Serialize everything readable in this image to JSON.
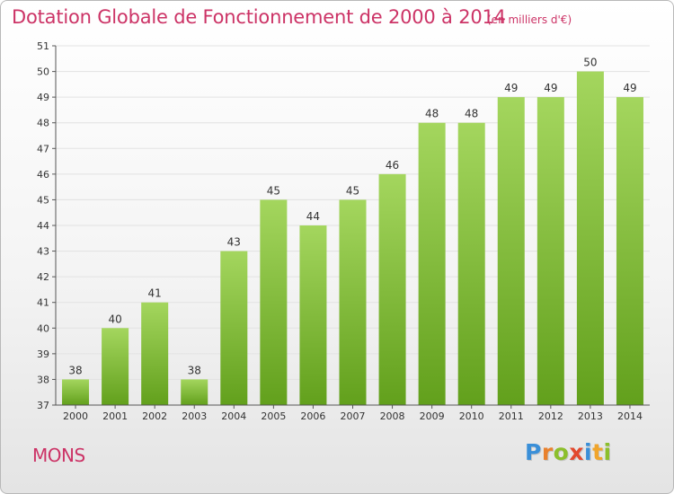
{
  "header": {
    "title": "Dotation Globale de Fonctionnement de 2000 à 2014",
    "subtitle": "(en milliers d'€)"
  },
  "footer": {
    "commune": "MONS",
    "logo_text": "Proxiti",
    "logo_colors": [
      "#3a8fd8",
      "#e9812d",
      "#8cbf2c",
      "#e2492d",
      "#3a8fd8",
      "#f0a52c",
      "#8cbf2c"
    ]
  },
  "colors": {
    "title": "#cc3366",
    "bar_light": "#a4d65e",
    "bar_dark": "#62a01c",
    "grid": "#e2e2e2",
    "axis": "#555555"
  },
  "chart_data": {
    "type": "bar",
    "categories": [
      "2000",
      "2001",
      "2002",
      "2003",
      "2004",
      "2005",
      "2006",
      "2007",
      "2008",
      "2009",
      "2010",
      "2011",
      "2012",
      "2013",
      "2014"
    ],
    "values": [
      38,
      40,
      41,
      38,
      43,
      45,
      44,
      45,
      46,
      48,
      48,
      49,
      49,
      50,
      49
    ],
    "data_labels": [
      "38",
      "40",
      "41",
      "38",
      "43",
      "45",
      "44",
      "45",
      "46",
      "48",
      "48",
      "49",
      "49",
      "50",
      "49"
    ],
    "yticks": [
      "37",
      "38",
      "39",
      "40",
      "41",
      "42",
      "43",
      "44",
      "45",
      "46",
      "47",
      "48",
      "49",
      "50",
      "51"
    ],
    "ylim": [
      37,
      51
    ],
    "grid": true,
    "legend": "none",
    "title": "Dotation Globale de Fonctionnement de 2000 à 2014",
    "xlabel": "",
    "ylabel": ""
  }
}
